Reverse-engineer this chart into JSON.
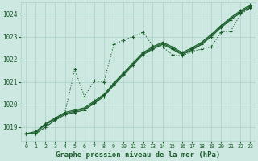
{
  "title": "Graphe pression niveau de la mer (hPa)",
  "background_color": "#cce8e0",
  "grid_color": "#aad0c8",
  "line_color": "#1a5c2a",
  "x": [
    0,
    1,
    2,
    3,
    4,
    5,
    6,
    7,
    8,
    9,
    10,
    11,
    12,
    13,
    14,
    15,
    16,
    17,
    18,
    19,
    20,
    21,
    22,
    23
  ],
  "series": [
    [
      1018.7,
      1018.7,
      1019.0,
      1019.3,
      1019.55,
      1019.65,
      1019.75,
      1020.05,
      1020.35,
      1020.85,
      1021.3,
      1021.75,
      1022.2,
      1022.45,
      1022.65,
      1022.45,
      1022.2,
      1022.4,
      1022.65,
      1023.0,
      1023.4,
      1023.75,
      1024.05,
      1024.3
    ],
    [
      1018.7,
      1018.75,
      1019.1,
      1019.35,
      1019.6,
      1019.7,
      1019.8,
      1020.1,
      1020.4,
      1020.9,
      1021.35,
      1021.8,
      1022.25,
      1022.5,
      1022.7,
      1022.5,
      1022.25,
      1022.45,
      1022.7,
      1023.05,
      1023.45,
      1023.8,
      1024.1,
      1024.35
    ],
    [
      1018.7,
      1018.8,
      1019.15,
      1019.4,
      1019.65,
      1019.75,
      1019.85,
      1020.15,
      1020.45,
      1020.95,
      1021.4,
      1021.85,
      1022.3,
      1022.55,
      1022.75,
      1022.55,
      1022.3,
      1022.5,
      1022.75,
      1023.1,
      1023.5,
      1023.85,
      1024.15,
      1024.4
    ],
    [
      1018.7,
      1018.7,
      1019.15,
      1019.4,
      1019.65,
      1021.55,
      1020.35,
      1021.05,
      1021.0,
      1022.65,
      1022.85,
      1023.0,
      1023.2,
      1022.6,
      1022.55,
      1022.2,
      1022.15,
      1022.35,
      1022.45,
      1022.55,
      1023.2,
      1023.25,
      1024.0,
      1024.25
    ]
  ],
  "line_styles": [
    "solid",
    "solid",
    "solid",
    "dotted"
  ],
  "ylim": [
    1018.4,
    1024.5
  ],
  "xlim": [
    -0.5,
    23.5
  ],
  "yticks": [
    1019,
    1020,
    1021,
    1022,
    1023,
    1024
  ],
  "xticks": [
    0,
    1,
    2,
    3,
    4,
    5,
    6,
    7,
    8,
    9,
    10,
    11,
    12,
    13,
    14,
    15,
    16,
    17,
    18,
    19,
    20,
    21,
    22,
    23
  ],
  "marker": "+",
  "markersize": 3.5,
  "linewidth": 0.8
}
